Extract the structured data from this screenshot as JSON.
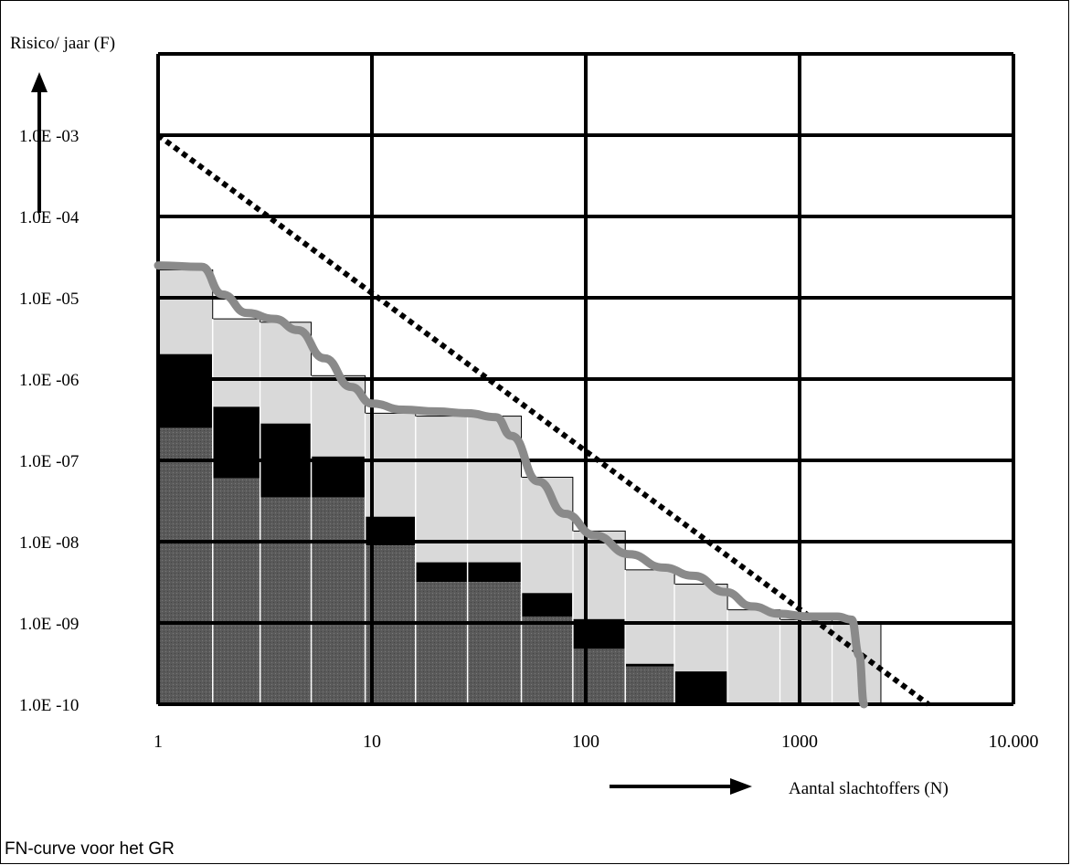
{
  "caption": "FN-curve voor het GR",
  "chart_data": {
    "type": "bar",
    "xscale": "log",
    "yscale": "log",
    "xlim": [
      1,
      10000
    ],
    "ylim": [
      1e-10,
      0.01
    ],
    "xlabel": "Aantal slachtoffers (N)",
    "ylabel": "Risico/ jaar (F)",
    "x_tick_labels": [
      "1",
      "10",
      "100",
      "1000",
      "10.000"
    ],
    "x_ticks": [
      1,
      10,
      100,
      1000,
      10000
    ],
    "y_tick_labels": [
      "1.0E -03",
      "1.0E -04",
      "1.0E -05",
      "1.0E -06",
      "1.0E -07",
      "1.0E -08",
      "1.0E -09",
      "1.0E -10"
    ],
    "y_ticks": [
      0.001,
      0.0001,
      1e-05,
      1e-06,
      1e-07,
      1e-08,
      1e-09,
      1e-10
    ],
    "grid": true,
    "colors": {
      "dark_band": "#5a5a5a",
      "black_band": "#000000",
      "light_band": "#d9d9d9",
      "curve": "#8a8a8a",
      "norm_line": "#000000"
    },
    "bars": [
      {
        "x0": 1.0,
        "x1": 1.8,
        "dark": 2.5e-07,
        "black": 2e-06,
        "light": 2.2e-05
      },
      {
        "x0": 1.8,
        "x1": 3.0,
        "dark": 6e-08,
        "black": 4.5e-07,
        "light": 5.5e-06
      },
      {
        "x0": 3.0,
        "x1": 5.2,
        "dark": 3.5e-08,
        "black": 2.8e-07,
        "light": 5e-06
      },
      {
        "x0": 5.2,
        "x1": 9.3,
        "dark": 3.5e-08,
        "black": 1.1e-07,
        "light": 1.1e-06
      },
      {
        "x0": 9.3,
        "x1": 16.0,
        "dark": 9e-09,
        "black": 2e-08,
        "light": 3.8e-07
      },
      {
        "x0": 16.0,
        "x1": 28.0,
        "dark": 3.2e-09,
        "black": 5.5e-09,
        "light": 3.5e-07
      },
      {
        "x0": 28.0,
        "x1": 50.0,
        "dark": 3.2e-09,
        "black": 5.5e-09,
        "light": 3.5e-07
      },
      {
        "x0": 50.0,
        "x1": 87.0,
        "dark": 1.2e-09,
        "black": 2.3e-09,
        "light": 6.2e-08
      },
      {
        "x0": 87.0,
        "x1": 153.0,
        "dark": 4.8e-10,
        "black": 1.1e-09,
        "light": 1.35e-08
      },
      {
        "x0": 153.0,
        "x1": 260.0,
        "dark": 2.9e-10,
        "black": 3.1e-10,
        "light": 4.5e-09
      },
      {
        "x0": 260.0,
        "x1": 460.0,
        "dark": 1e-10,
        "black": 2.5e-10,
        "light": 3e-09
      },
      {
        "x0": 460.0,
        "x1": 810.0,
        "dark": 1e-10,
        "black": 1e-10,
        "light": 1.45e-09
      },
      {
        "x0": 810.0,
        "x1": 1420.0,
        "dark": 1e-10,
        "black": 1e-10,
        "light": 1.1e-09
      },
      {
        "x0": 1420.0,
        "x1": 2400.0,
        "dark": 1e-10,
        "black": 1e-10,
        "light": 1e-09
      }
    ],
    "fn_curve": {
      "x": [
        1.0,
        1.6,
        2.0,
        2.6,
        3.5,
        4.5,
        6.0,
        8.0,
        10.0,
        14.0,
        20.0,
        28.0,
        38.0,
        45.0,
        60.0,
        80.0,
        110.0,
        160.0,
        230.0,
        320.0,
        450.0,
        600.0,
        800.0,
        1100.0,
        1500.0,
        1750.0,
        1900.0,
        2000.0
      ],
      "y": [
        2.5e-05,
        2.4e-05,
        1.1e-05,
        6.5e-06,
        5.5e-06,
        4e-06,
        1.8e-06,
        8e-07,
        5e-07,
        4.2e-07,
        4e-07,
        3.8e-07,
        3.4e-07,
        2e-07,
        5.5e-08,
        2.2e-08,
        1.2e-08,
        7e-09,
        4.8e-09,
        3.8e-09,
        2.4e-09,
        1.6e-09,
        1.3e-09,
        1.2e-09,
        1.2e-09,
        1.1e-09,
        4e-10,
        1e-10
      ]
    },
    "norm_line": {
      "x": [
        1,
        4000
      ],
      "y": [
        0.001,
        1e-10
      ]
    }
  }
}
